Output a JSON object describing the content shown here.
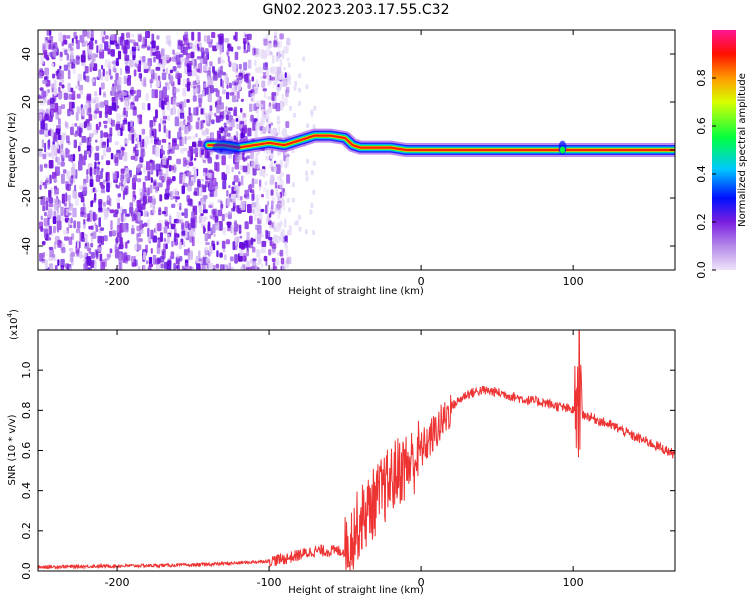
{
  "figure": {
    "title": "GN02.2023.203.17.55.C32"
  },
  "chart_data": [
    {
      "type": "heatmap",
      "xlabel": "Height of straight line (km)",
      "ylabel": "Frequency (Hz)",
      "xlim": [
        -252,
        167
      ],
      "ylim": [
        -50,
        50
      ],
      "xticks": [
        -200,
        -100,
        0,
        100
      ],
      "yticks": [
        -40,
        -20,
        0,
        20,
        40
      ],
      "noise_region_x": [
        -252,
        -100
      ],
      "signal_track": {
        "x": [
          -140,
          -130,
          -120,
          -110,
          -100,
          -90,
          -80,
          -70,
          -60,
          -50,
          -45,
          -40,
          -30,
          -20,
          -10,
          0,
          20,
          60,
          90,
          100,
          167
        ],
        "freq_hz": [
          2,
          2,
          1,
          2,
          3,
          2,
          4,
          6,
          6,
          5,
          2,
          1,
          1,
          1,
          0,
          0,
          0,
          0,
          0,
          0,
          0
        ],
        "note": "constant ~0 Hz line from 0 km to right edge"
      },
      "colorbar": {
        "label": "Normalized spectral amplitude",
        "range": [
          0,
          1
        ],
        "ticks": [
          "0.0",
          "0.2",
          "0.4",
          "0.6",
          "0.8"
        ],
        "tick_values": [
          0.0,
          0.2,
          0.4,
          0.6,
          0.8
        ],
        "colors": [
          "#e8d8f5",
          "#8a2be2",
          "#0000ff",
          "#00ffff",
          "#00ff00",
          "#ffff00",
          "#ff7f00",
          "#ff0000",
          "#ff1493"
        ]
      }
    },
    {
      "type": "line",
      "xlabel": "Height of straight line (km)",
      "ylabel": "SNR (10 * v/v)",
      "y_multiplier": "(x10",
      "y_multiplier_exp": "4",
      "y_multiplier_close": ")",
      "xlim": [
        -252,
        167
      ],
      "ylim": [
        0,
        1.2
      ],
      "xticks": [
        -200,
        -100,
        0,
        100
      ],
      "yticks": [
        "0.0",
        "0.2",
        "0.4",
        "0.6",
        "0.8",
        "1.0"
      ],
      "ytick_values": [
        0.0,
        0.2,
        0.4,
        0.6,
        0.8,
        1.0
      ],
      "series": [
        {
          "color": "#ee3333",
          "x": [
            -252,
            -200,
            -150,
            -120,
            -100,
            -90,
            -80,
            -70,
            -60,
            -50,
            -45,
            -40,
            -35,
            -30,
            -25,
            -20,
            -15,
            -10,
            -5,
            0,
            5,
            10,
            15,
            20,
            30,
            40,
            50,
            60,
            70,
            80,
            90,
            95,
            100,
            103,
            106,
            110,
            120,
            130,
            140,
            150,
            167
          ],
          "y": [
            0.02,
            0.025,
            0.03,
            0.04,
            0.05,
            0.06,
            0.08,
            0.1,
            0.1,
            0.1,
            0.18,
            0.25,
            0.3,
            0.35,
            0.4,
            0.45,
            0.5,
            0.52,
            0.55,
            0.6,
            0.65,
            0.7,
            0.75,
            0.82,
            0.88,
            0.9,
            0.89,
            0.87,
            0.85,
            0.84,
            0.82,
            0.81,
            0.8,
            0.78,
            0.78,
            0.77,
            0.74,
            0.71,
            0.67,
            0.64,
            0.58
          ]
        }
      ]
    }
  ]
}
